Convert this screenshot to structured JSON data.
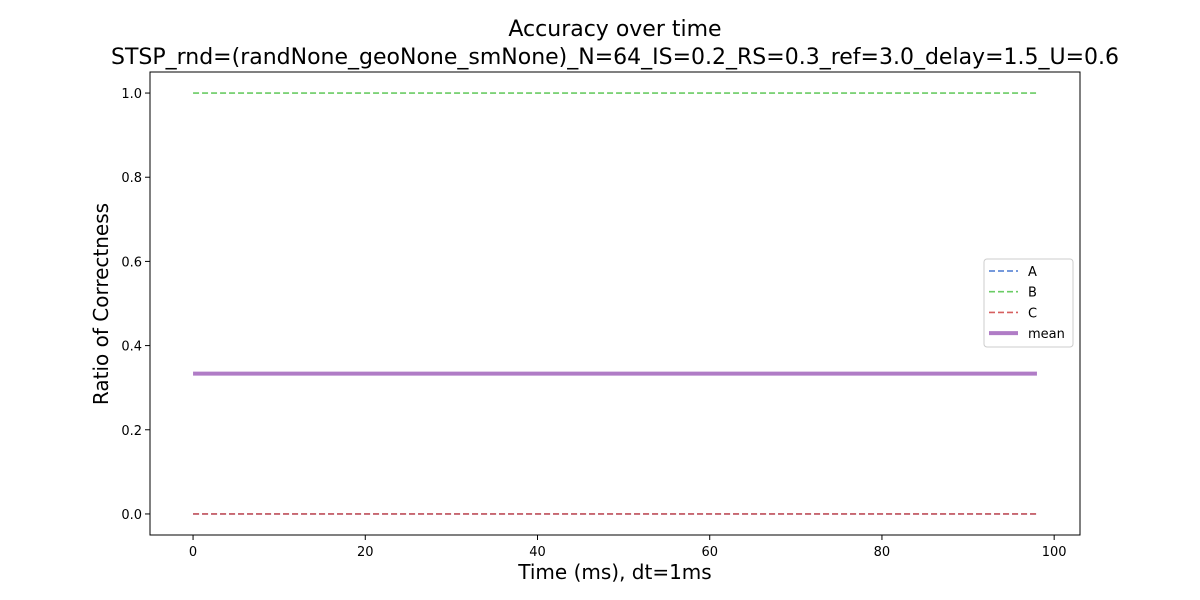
{
  "chart_data": {
    "type": "line",
    "title": "Accuracy over time",
    "subtitle": "STSP_rnd=(randNone_geoNone_smNone)_N=64_IS=0.2_RS=0.3_ref=3.0_delay=1.5_U=0.6",
    "xlabel": "Time (ms), dt=1ms",
    "ylabel": "Ratio of Correctness",
    "xlim": [
      -5,
      103
    ],
    "ylim": [
      -0.05,
      1.05
    ],
    "xticks": [
      0,
      20,
      40,
      60,
      80,
      100
    ],
    "yticks": [
      0.0,
      0.2,
      0.4,
      0.6,
      0.8,
      1.0
    ],
    "xtick_labels": [
      "0",
      "20",
      "40",
      "60",
      "80",
      "100"
    ],
    "ytick_labels": [
      "0.0",
      "0.2",
      "0.4",
      "0.6",
      "0.8",
      "1.0"
    ],
    "grid": false,
    "legend_position": "center-right",
    "series": [
      {
        "name": "A",
        "x": [
          0,
          98
        ],
        "y": [
          0.0,
          0.0
        ],
        "color": "#4878d0",
        "style": "dashed"
      },
      {
        "name": "B",
        "x": [
          0,
          98
        ],
        "y": [
          1.0,
          1.0
        ],
        "color": "#6acc64",
        "style": "dashed"
      },
      {
        "name": "C",
        "x": [
          0,
          98
        ],
        "y": [
          0.0,
          0.0
        ],
        "color": "#d65f5f",
        "style": "dashed"
      },
      {
        "name": "mean",
        "x": [
          0,
          98
        ],
        "y": [
          0.3333,
          0.3333
        ],
        "color": "#b07cc6",
        "style": "solid-thick"
      }
    ]
  }
}
